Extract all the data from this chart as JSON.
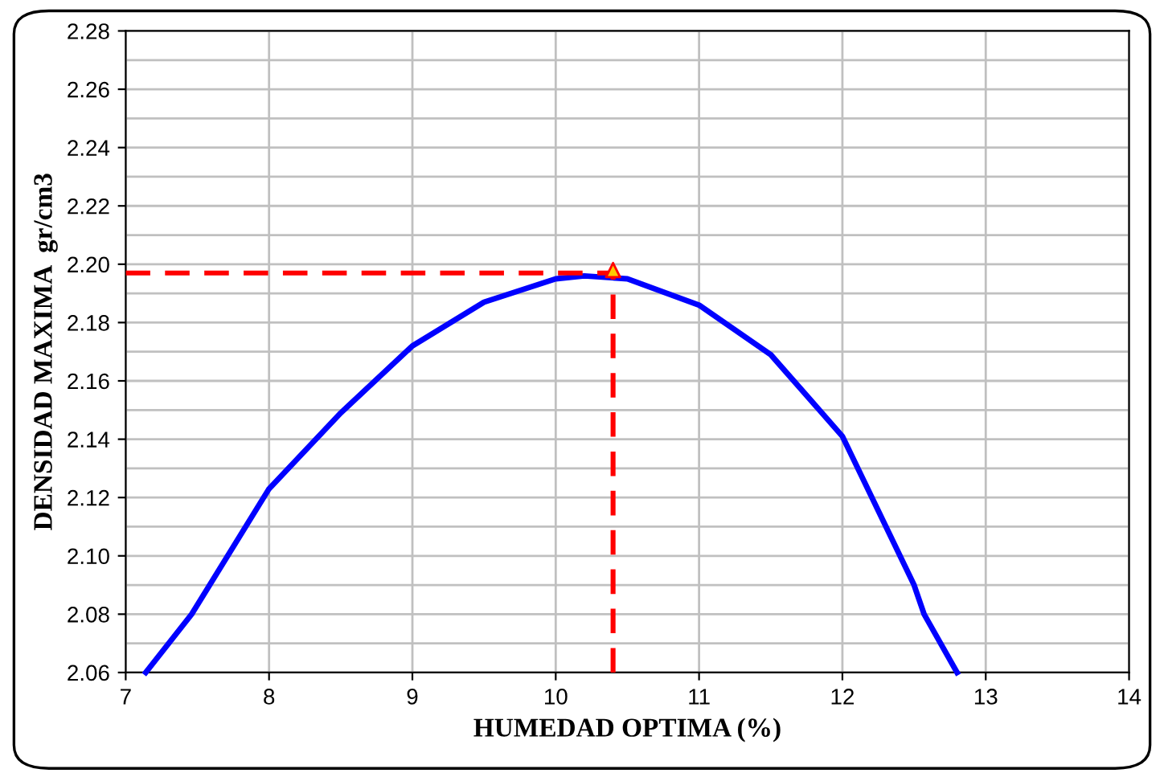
{
  "chart_data": {
    "type": "line",
    "xlabel": "HUMEDAD OPTIMA (%)",
    "ylabel": "DENSIDAD MAXIMA  gr/cm3",
    "series": [
      {
        "color": "#0000ff",
        "marker": "none",
        "x": [
          7.14,
          7.46,
          8,
          8.5,
          9,
          9.5,
          10,
          10.2,
          10.5,
          11,
          11.5,
          12,
          12.5,
          12.57,
          12.8
        ],
        "values": [
          2.06,
          2.08,
          2.123,
          2.149,
          2.172,
          2.187,
          2.195,
          2.196,
          2.195,
          2.186,
          2.169,
          2.141,
          2.09,
          2.08,
          2.06
        ]
      },
      {
        "type": "scatter",
        "color": "#ffcc00",
        "marker": "triangle",
        "x": [
          10.4
        ],
        "values": [
          2.198
        ]
      }
    ],
    "ref_lines": [
      {
        "axis": "x",
        "value": 10.4,
        "color": "#ff0000",
        "line_style": "dashed"
      },
      {
        "axis": "y",
        "value": 2.197,
        "color": "#ff0000",
        "line_style": "dashed"
      }
    ],
    "xlim": [
      7,
      14
    ],
    "ylim": [
      2.06,
      2.28
    ],
    "xticks": [
      7,
      8,
      9,
      10,
      11,
      12,
      13,
      14
    ],
    "yticks": [
      2.06,
      {
        "value": 2.07,
        "label": null
      },
      2.08,
      {
        "value": 2.09,
        "label": null
      },
      {
        "value": 2.1,
        "label": "2.10"
      },
      {
        "value": 2.11,
        "label": null
      },
      2.12,
      {
        "value": 2.13,
        "label": null
      },
      2.14,
      {
        "value": 2.15,
        "label": null
      },
      2.16,
      {
        "value": 2.17,
        "label": null
      },
      2.18,
      {
        "value": 2.19,
        "label": null
      },
      {
        "value": 2.2,
        "label": "2.20"
      },
      {
        "value": 2.21,
        "label": null
      },
      2.22,
      {
        "value": 2.23,
        "label": null
      },
      2.24,
      {
        "value": 2.25,
        "label": null
      },
      2.26,
      {
        "value": 2.27,
        "label": null
      },
      2.28
    ],
    "grid": true,
    "legend": false
  }
}
